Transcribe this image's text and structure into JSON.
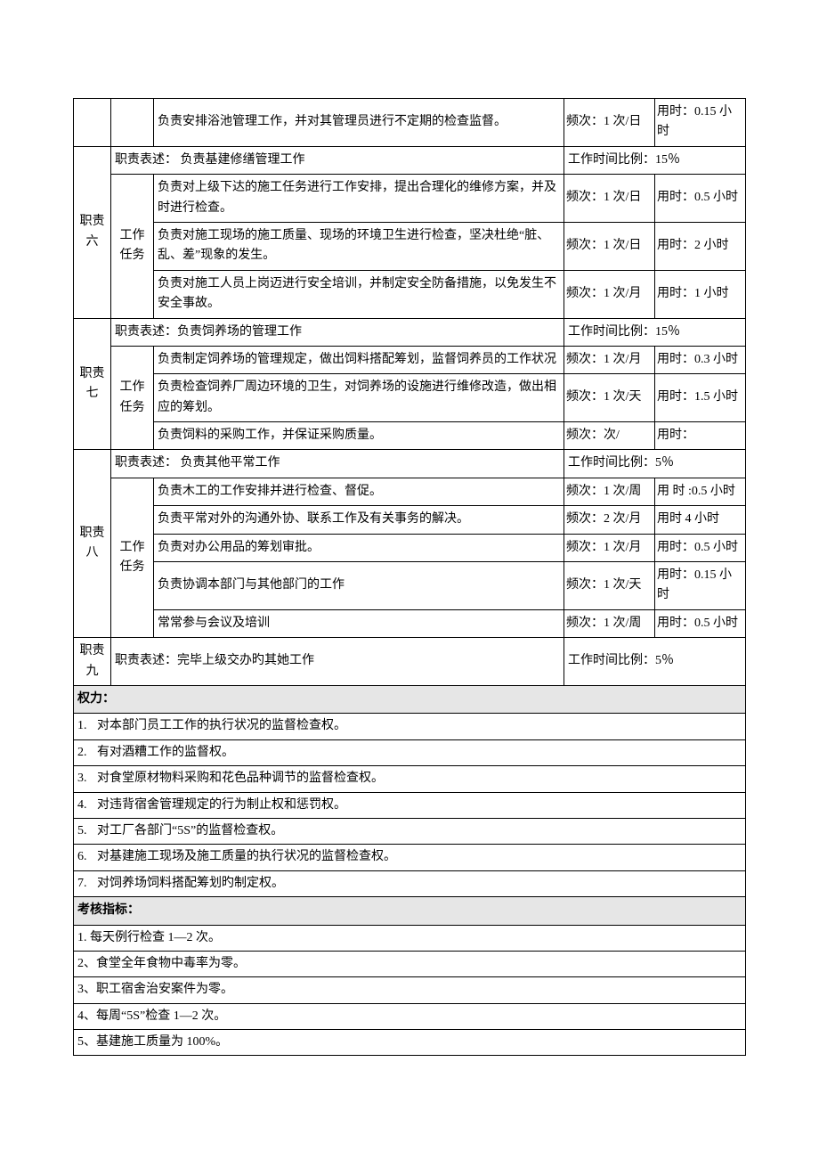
{
  "row_bath": {
    "desc": "负责安排浴池管理工作，并对其管理员进行不定期的检查监督。",
    "freq": "频次：1 次/日",
    "time": "用时：0.15 小时"
  },
  "duty6": {
    "id": "职责六",
    "sub_label": "工作任务",
    "title_left": "职责表述：  负责基建修缮管理工作",
    "title_right": "工作时间比例：15％",
    "tasks": [
      {
        "desc": "负责对上级下达的施工任务进行工作安排，提出合理化的维修方案，并及时进行检查。",
        "freq": "频次：1 次/日",
        "time": "用时：0.5 小时"
      },
      {
        "desc": "负责对施工现场的施工质量、现场的环境卫生进行检查，坚决杜绝“脏、乱、差”现象的发生。",
        "freq": "频次：1 次/日",
        "time": "用时：2 小时"
      },
      {
        "desc": "负责对施工人员上岗迈进行安全培训，并制定安全防备措施，以免发生不安全事故。",
        "freq": "频次：1 次/月",
        "time": "用时：1 小时"
      }
    ]
  },
  "duty7": {
    "id": "职责七",
    "sub_label": "工作任务",
    "title_left": "职责表述：负责饲养场的管理工作",
    "title_right": "工作时间比例：15％",
    "tasks": [
      {
        "desc": "负责制定饲养场的管理规定，做出饲料搭配筹划，监督饲养员的工作状况",
        "freq": "频次：1 次/月",
        "time": "用时：0.3 小时"
      },
      {
        "desc": "负责检查饲养厂周边环境的卫生，对饲养场的设施进行维修改造，做出相应的筹划。",
        "freq": "频次：1 次/天",
        "time": "用时：1.5 小时"
      },
      {
        "desc": "负责饲料的采购工作，并保证采购质量。",
        "freq": "频次：次/",
        "time": "用时："
      }
    ]
  },
  "duty8": {
    "id": "职责八",
    "sub_label": "工作任务",
    "title_left": "职责表述：  负责其他平常工作",
    "title_right": "工作时间比例：5％",
    "tasks": [
      {
        "desc": "负责木工的工作安排并进行检查、督促。",
        "freq": "频次：1 次/周",
        "time": "用 时 :0.5 小时"
      },
      {
        "desc": "负责平常对外的沟通外协、联系工作及有关事务的解决。",
        "freq": "频次：2 次/月",
        "time": "用时 4 小时"
      },
      {
        "desc": "负责对办公用品的筹划审批。",
        "freq": "频次：1 次/月",
        "time": "用时：0.5 小时"
      },
      {
        "desc": "负责协调本部门与其他部门的工作",
        "freq": "频次：1 次/天",
        "time": "用时：0.15 小时"
      },
      {
        "desc": "常常参与会议及培训",
        "freq": "频次：1 次/周",
        "time": "用时：0.5 小时"
      }
    ]
  },
  "duty9": {
    "id": "职责九",
    "title_left": "职责表述：完毕上级交办旳其她工作",
    "title_right": "工作时间比例：5％"
  },
  "powers_header": "权力：",
  "powers": [
    "对本部门员工工作的执行状况的监督检查权。",
    "有对酒糟工作的监督权。",
    "对食堂原材物料采购和花色品种调节的监督检查权。",
    "对违背宿舍管理规定的行为制止权和惩罚权。",
    "对工厂各部门“5S”的监督检查权。",
    "对基建施工现场及施工质量的执行状况的监督检查权。",
    "对饲养场饲料搭配筹划旳制定权。"
  ],
  "kpi_header": "考核指标：",
  "kpi": [
    {
      "idx": "1.",
      "text": "  每天例行检查 1—2 次。"
    },
    {
      "idx": "2、",
      "text": "食堂全年食物中毒率为零。"
    },
    {
      "idx": "3、",
      "text": "职工宿舍治安案件为零。"
    },
    {
      "idx": "4、",
      "text": "每周“5S”检查 1—2 次。"
    },
    {
      "idx": "5、",
      "text": "基建施工质量为 100%。"
    }
  ]
}
